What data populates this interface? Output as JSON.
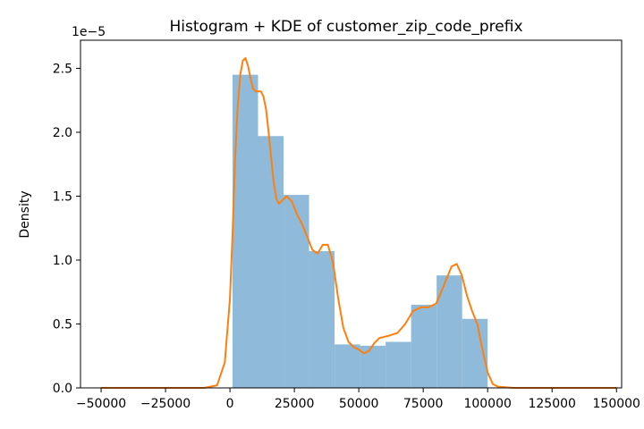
{
  "chart_data": {
    "type": "bar",
    "title": "Histogram + KDE of customer_zip_code_prefix",
    "xlabel": "",
    "ylabel": "Density",
    "y_offset_label": "1e−5",
    "xlim": [
      -58000,
      152000
    ],
    "ylim": [
      0,
      2.72
    ],
    "xticks": [
      -50000,
      -25000,
      0,
      25000,
      50000,
      75000,
      100000,
      125000,
      150000
    ],
    "xtick_labels": [
      "−50000",
      "−25000",
      "0",
      "25000",
      "50000",
      "75000",
      "100000",
      "125000",
      "150000"
    ],
    "yticks": [
      0.0,
      0.5,
      1.0,
      1.5,
      2.0,
      2.5
    ],
    "ytick_labels": [
      "0.0",
      "0.5",
      "1.0",
      "1.5",
      "2.0",
      "2.5"
    ],
    "grid": false,
    "histogram": {
      "bin_edges": [
        1000,
        10900,
        20800,
        30700,
        40600,
        50500,
        60400,
        70300,
        80200,
        90100,
        100000
      ],
      "values": [
        2.45,
        1.97,
        1.51,
        1.07,
        0.34,
        0.33,
        0.36,
        0.65,
        0.88,
        0.54
      ],
      "color": "#8fbad9"
    },
    "kde": {
      "color": "#ff7f0e",
      "x": [
        -50000,
        -10000,
        -5000,
        -2000,
        0,
        1000,
        2000,
        3000,
        4000,
        5000,
        6000,
        7000,
        8000,
        9000,
        10000,
        11000,
        12000,
        13000,
        14000,
        15000,
        16000,
        17000,
        18000,
        19000,
        20000,
        22000,
        24000,
        26000,
        28000,
        30000,
        32000,
        34000,
        36000,
        38000,
        40000,
        42000,
        44000,
        46000,
        48000,
        50000,
        52000,
        54000,
        56000,
        58000,
        60000,
        62000,
        65000,
        68000,
        71000,
        74000,
        77000,
        80000,
        83000,
        86000,
        88000,
        90000,
        92000,
        94000,
        96000,
        98000,
        100000,
        102000,
        104000,
        110000,
        150000
      ],
      "y": [
        0,
        0,
        0.02,
        0.2,
        0.7,
        1.2,
        1.8,
        2.2,
        2.45,
        2.56,
        2.58,
        2.52,
        2.42,
        2.34,
        2.32,
        2.32,
        2.32,
        2.28,
        2.18,
        2.0,
        1.8,
        1.6,
        1.48,
        1.44,
        1.46,
        1.5,
        1.46,
        1.36,
        1.28,
        1.18,
        1.08,
        1.05,
        1.12,
        1.12,
        0.98,
        0.7,
        0.47,
        0.36,
        0.32,
        0.3,
        0.27,
        0.29,
        0.35,
        0.39,
        0.4,
        0.41,
        0.43,
        0.5,
        0.6,
        0.63,
        0.63,
        0.66,
        0.8,
        0.95,
        0.97,
        0.88,
        0.72,
        0.6,
        0.5,
        0.3,
        0.12,
        0.03,
        0.01,
        0,
        0
      ]
    }
  }
}
